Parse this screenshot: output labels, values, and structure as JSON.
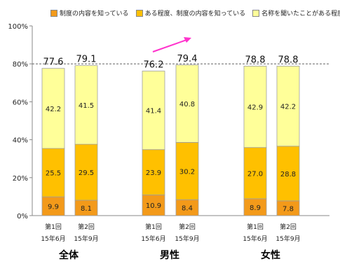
{
  "chart_data": {
    "type": "bar",
    "stacked": true,
    "ylim": [
      0,
      100
    ],
    "yticks": [
      "0%",
      "20%",
      "40%",
      "60%",
      "80%",
      "100%"
    ],
    "grid": "dashed at 80%",
    "legend_position": "top",
    "groups": [
      {
        "label": "全体",
        "bars": [
          {
            "line1": "第1回",
            "line2": "15年6月",
            "total": "77.6"
          },
          {
            "line1": "第2回",
            "line2": "15年9月",
            "total": "79.1"
          }
        ]
      },
      {
        "label": "男性",
        "bars": [
          {
            "line1": "第1回",
            "line2": "15年6月",
            "total": "76.2"
          },
          {
            "line1": "第2回",
            "line2": "15年9月",
            "total": "79.4"
          }
        ]
      },
      {
        "label": "女性",
        "bars": [
          {
            "line1": "第1回",
            "line2": "15年6月",
            "total": "78.8"
          },
          {
            "line1": "第2回",
            "line2": "15年9月",
            "total": "78.8"
          }
        ]
      }
    ],
    "series": [
      {
        "name": "制度の内容を知っている",
        "color": "#F39A1A",
        "values": [
          9.9,
          8.1,
          10.9,
          8.4,
          8.9,
          7.8
        ],
        "labels": [
          "9.9",
          "8.1",
          "10.9",
          "8.4",
          "8.9",
          "7.8"
        ]
      },
      {
        "name": "ある程度、制度の内容を知っている",
        "color": "#FFC000",
        "values": [
          25.5,
          29.5,
          23.9,
          30.2,
          27.0,
          28.8
        ],
        "labels": [
          "25.5",
          "29.5",
          "23.9",
          "30.2",
          "27.0",
          "28.8"
        ]
      },
      {
        "name": "名称を聞いたことがある程度",
        "color": "#FFFF99",
        "values": [
          42.2,
          41.5,
          41.4,
          40.8,
          42.9,
          42.2
        ],
        "labels": [
          "42.2",
          "41.5",
          "41.4",
          "40.8",
          "42.9",
          "42.2"
        ]
      }
    ],
    "annotation": {
      "type": "arrow",
      "color": "#FF33CC"
    }
  }
}
